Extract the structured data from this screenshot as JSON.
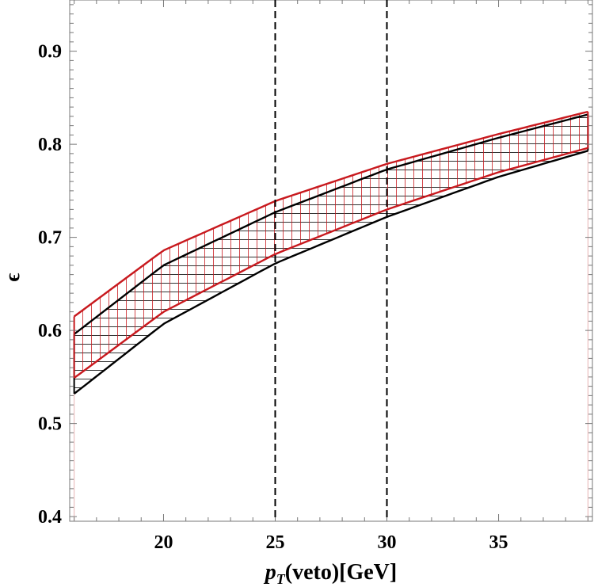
{
  "chart_data": {
    "type": "area",
    "title": "",
    "xlabel_main": "p",
    "xlabel_sub": "T",
    "xlabel_rest": "(veto)[GeV]",
    "ylabel": "ϵ",
    "xlim": [
      15.8,
      39.2
    ],
    "ylim": [
      0.395,
      0.955
    ],
    "xticks": [
      20,
      25,
      30,
      35
    ],
    "yticks": [
      0.4,
      0.5,
      0.6,
      0.7,
      0.8,
      0.9
    ],
    "tick_labels_x": [
      "20",
      "25",
      "30",
      "35"
    ],
    "tick_labels_y": [
      "0.4",
      "0.5",
      "0.6",
      "0.7",
      "0.8",
      "0.9"
    ],
    "vlines": [
      25,
      30
    ],
    "x": [
      16,
      20,
      25,
      30,
      35,
      39
    ],
    "series": [
      {
        "color": "#000000",
        "hatch": "horizontal",
        "lower": [
          0.532,
          0.607,
          0.672,
          0.722,
          0.765,
          0.793
        ],
        "upper": [
          0.596,
          0.67,
          0.727,
          0.773,
          0.807,
          0.832
        ]
      },
      {
        "color": "#c8191e",
        "hatch": "vertical",
        "lower": [
          0.549,
          0.62,
          0.682,
          0.73,
          0.77,
          0.796
        ],
        "upper": [
          0.615,
          0.686,
          0.739,
          0.779,
          0.811,
          0.835
        ]
      }
    ]
  }
}
